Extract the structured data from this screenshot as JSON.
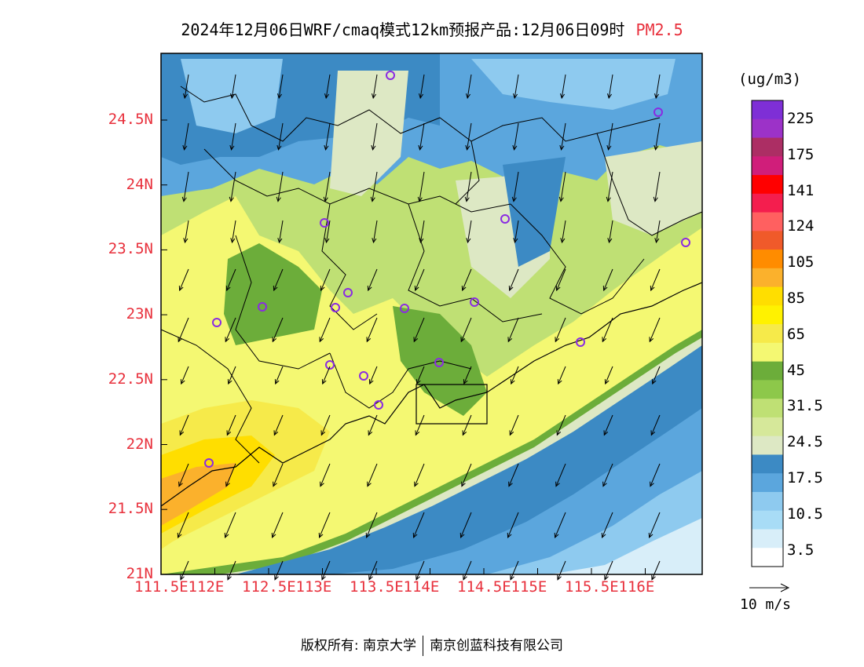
{
  "title": "2024年12月06日WRF/cmaq模式12km预报产品:12月06日09时",
  "pollutant": "PM2.5",
  "units": "(ug/m3)",
  "lat_labels": [
    "24.5N",
    "24N",
    "23.5N",
    "23N",
    "22.5N",
    "22N",
    "21.5N",
    "21N"
  ],
  "lon_labels": [
    "111.5E",
    "112E",
    "112.5E",
    "113E",
    "113.5E",
    "114E",
    "114.5E",
    "115E",
    "115.5E",
    "116E"
  ],
  "colorbar": {
    "labels": [
      "225",
      "175",
      "141",
      "124",
      "105",
      "85",
      "65",
      "45",
      "31.5",
      "24.5",
      "17.5",
      "10.5",
      "3.5"
    ],
    "colors": [
      "#7e2fd6",
      "#9c32c8",
      "#ac2e64",
      "#d01e7a",
      "#ff0000",
      "#f41e4e",
      "#ff6060",
      "#f05a2a",
      "#ff8c00",
      "#fbb12c",
      "#ffde00",
      "#fff200",
      "#f6ea4a",
      "#f4f872",
      "#6cad3a",
      "#8dc84a",
      "#bfe074",
      "#d6e89a",
      "#dde8c4",
      "#3c8ac4",
      "#5ba6dd",
      "#8ecaef",
      "#a8dcf6",
      "#d8eef9",
      "#ffffff"
    ]
  },
  "wind_reference": "10 m/s",
  "footer": {
    "left": "版权所有: 南京大学",
    "right": "南京创蓝科技有限公司"
  }
}
